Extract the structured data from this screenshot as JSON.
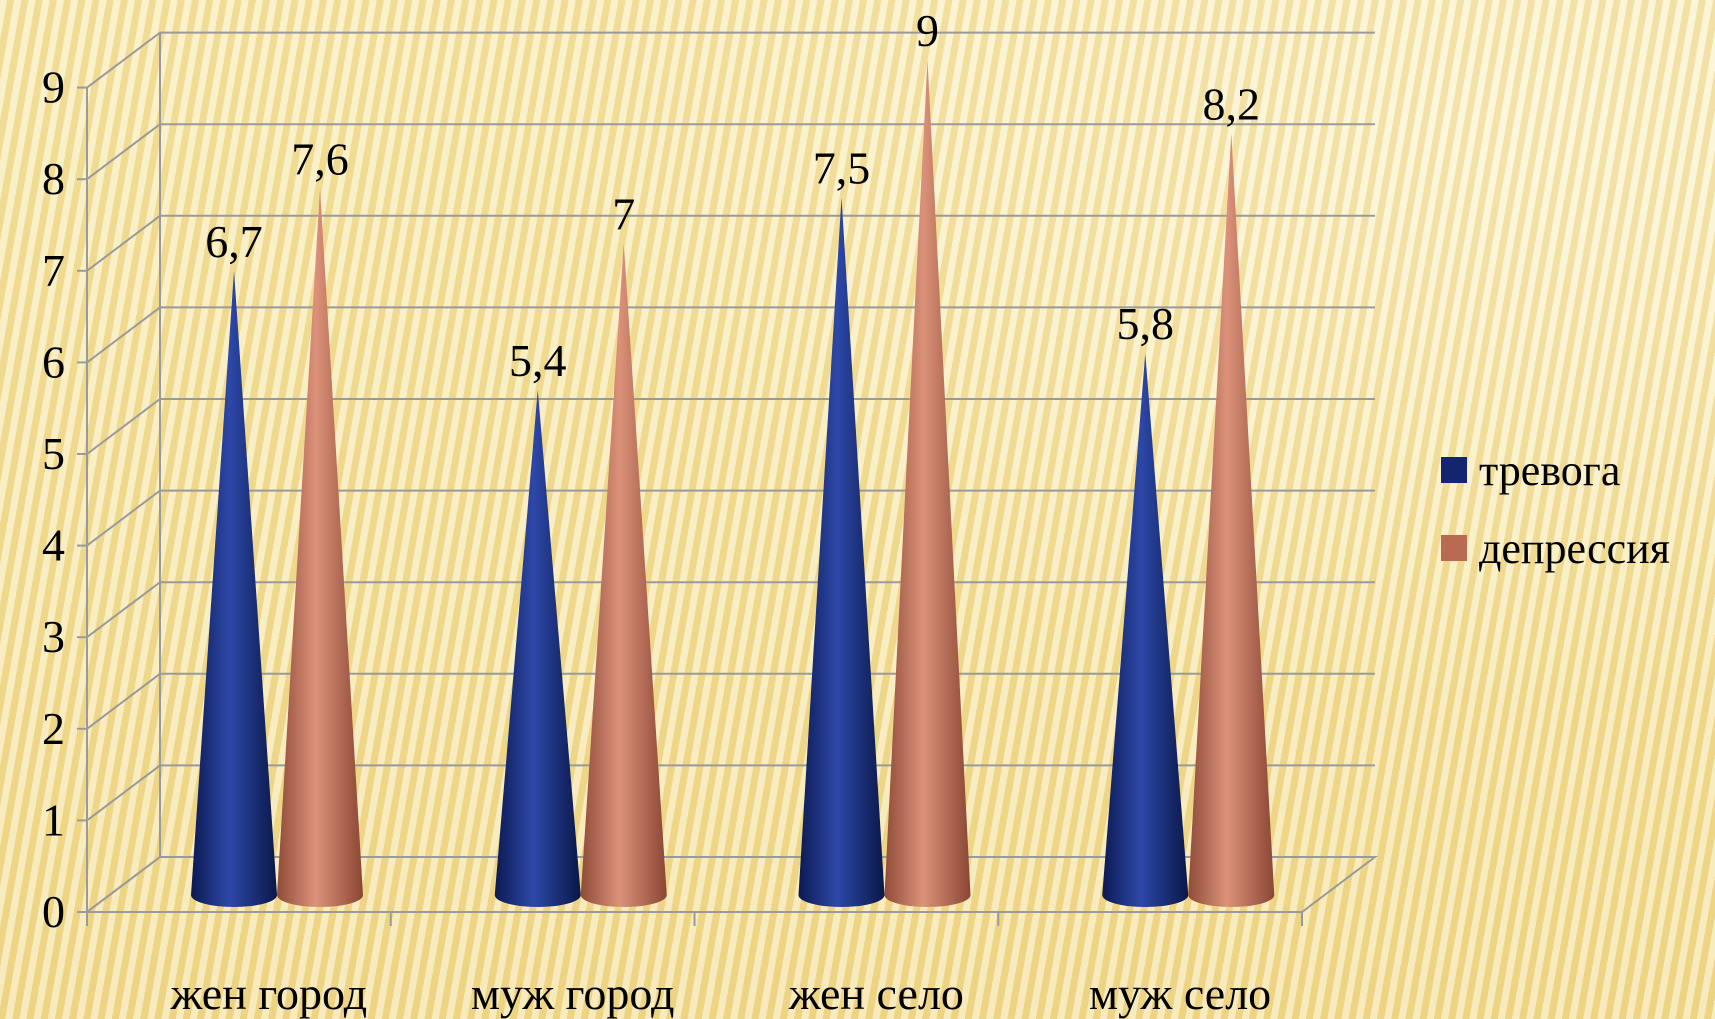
{
  "chart_data": {
    "type": "bar",
    "bar_shape": "cone",
    "categories": [
      "жен город",
      "муж город",
      "жен село",
      "муж село"
    ],
    "series": [
      {
        "name": "тревога",
        "values": [
          6.7,
          5.4,
          7.5,
          5.8
        ],
        "labels": [
          "6,7",
          "5,4",
          "7,5",
          "5,8"
        ],
        "color": "#12256e"
      },
      {
        "name": "депрессия",
        "values": [
          7.6,
          7.0,
          9.0,
          8.2
        ],
        "labels": [
          "7,6",
          "7",
          "9",
          "8,2"
        ],
        "color": "#b86a52"
      }
    ],
    "yticks": [
      "0",
      "1",
      "2",
      "3",
      "4",
      "5",
      "6",
      "7",
      "8",
      "9"
    ],
    "ylim": [
      0,
      9
    ],
    "grid": true,
    "legend": "right",
    "title": "",
    "xlabel": "",
    "ylabel": ""
  }
}
